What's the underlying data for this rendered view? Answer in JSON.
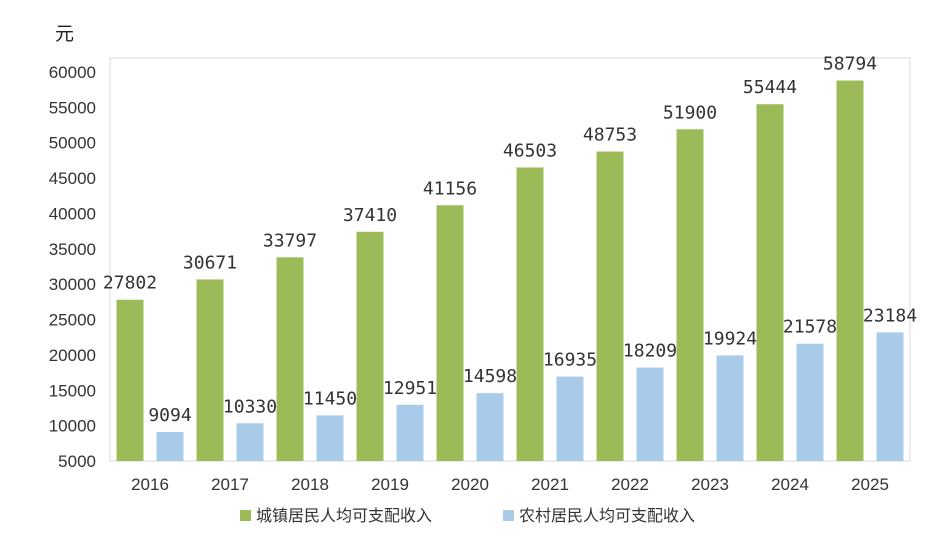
{
  "chart_data": {
    "type": "bar",
    "unit": "元",
    "categories": [
      "2016",
      "2017",
      "2018",
      "2019",
      "2020",
      "2021",
      "2022",
      "2023",
      "2024",
      "2025"
    ],
    "series": [
      {
        "name": "城镇居民人均可支配收入",
        "color": "#9bbb59",
        "values": [
          27802,
          30671,
          33797,
          37410,
          41156,
          46503,
          48753,
          51900,
          55444,
          58794
        ]
      },
      {
        "name": "农村居民人均可支配收入",
        "color": "#a9cbea",
        "values": [
          9094,
          10330,
          11450,
          12951,
          14598,
          16935,
          18209,
          19924,
          21578,
          23184
        ]
      }
    ],
    "ylim": [
      5000,
      60000
    ],
    "yticks": [
      5000,
      10000,
      15000,
      20000,
      25000,
      30000,
      35000,
      40000,
      45000,
      50000,
      55000,
      60000
    ],
    "grid": false,
    "legend": "bottom"
  }
}
